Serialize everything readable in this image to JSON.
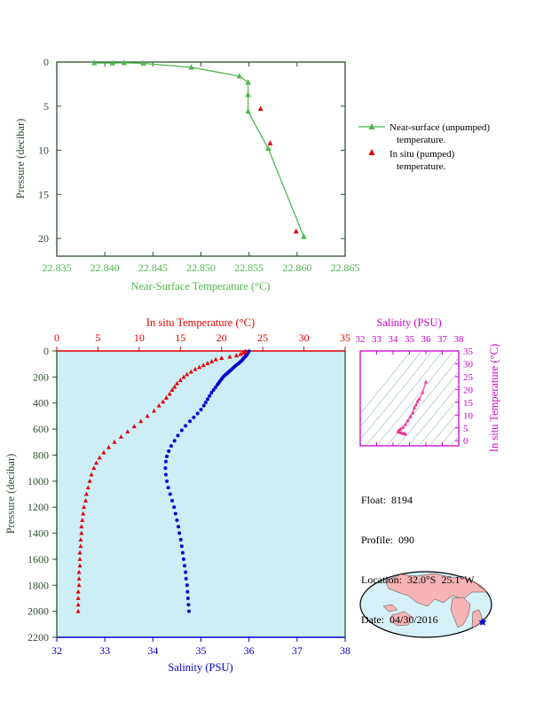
{
  "colors": {
    "surface_green": "#4cb84c",
    "axis_green": "#2e4e2e",
    "insitu_red": "#e00000",
    "salinity_blue": "#0000d0",
    "plot_bg": "#cdeef7",
    "salinity_purple": "#cc00cc",
    "map_land": "#f7b4b4"
  },
  "float_info": {
    "float": "Float:  8194",
    "profile": "Profile:  090",
    "location": "Location:  32.0°S  25.1°W",
    "date": "Date:  04/30/2016"
  },
  "tiny_footer": "",
  "chart_data": [
    {
      "id": "near_surface",
      "type": "line",
      "xlabel": "Near-Surface Temperature (°C)",
      "ylabel": "Pressure (decibar)",
      "xlim": [
        22.835,
        22.865
      ],
      "ylim": [
        22,
        0
      ],
      "xticks": [
        "22.835",
        "22.840",
        "22.845",
        "22.850",
        "22.855",
        "22.860",
        "22.865"
      ],
      "yticks": [
        "0",
        "5",
        "10",
        "15",
        "20"
      ],
      "series": [
        {
          "name": "Near-surface (unpumped) temperature.",
          "marker": "triangle",
          "points": [
            [
              22.8389,
              0.1
            ],
            [
              22.8408,
              0.12
            ],
            [
              22.842,
              0.08
            ],
            [
              22.844,
              0.15
            ],
            [
              22.849,
              0.6
            ],
            [
              22.854,
              1.6
            ],
            [
              22.8549,
              2.3
            ],
            [
              22.8549,
              3.7
            ],
            [
              22.8549,
              5.6
            ],
            [
              22.857,
              9.8
            ],
            [
              22.8607,
              19.8
            ]
          ]
        },
        {
          "name": "In situ (pumped) temperature.",
          "marker": "triangle",
          "points": [
            [
              22.8562,
              5.3
            ],
            [
              22.8572,
              9.2
            ],
            [
              22.8599,
              19.2
            ]
          ]
        }
      ],
      "legend": [
        {
          "line1": "Near-surface (unpumped)",
          "line2": "temperature."
        },
        {
          "line1": "In situ (pumped)",
          "line2": "temperature."
        }
      ],
      "legend_position": "right"
    },
    {
      "id": "profile",
      "type": "scatter",
      "title_top": "In situ Temperature (°C)",
      "xlabel": "Salinity (PSU)",
      "ylabel": "Pressure (decibar)",
      "temp_lim": [
        0,
        35
      ],
      "sal_lim": [
        32,
        38
      ],
      "ylim": [
        2200,
        0
      ],
      "temp_ticks": [
        "0",
        "5",
        "10",
        "15",
        "20",
        "25",
        "30",
        "35"
      ],
      "sal_ticks": [
        "32",
        "33",
        "34",
        "35",
        "36",
        "37",
        "38"
      ],
      "yticks": [
        "0",
        "200",
        "400",
        "600",
        "800",
        "1000",
        "1200",
        "1400",
        "1600",
        "1800",
        "2000",
        "2200"
      ],
      "temperature": [
        [
          22.9,
          2
        ],
        [
          22.8,
          8
        ],
        [
          22.6,
          15
        ],
        [
          22.3,
          25
        ],
        [
          21.8,
          35
        ],
        [
          21.0,
          45
        ],
        [
          20.0,
          55
        ],
        [
          19.3,
          65
        ],
        [
          18.8,
          80
        ],
        [
          18.3,
          95
        ],
        [
          17.8,
          110
        ],
        [
          17.3,
          125
        ],
        [
          16.8,
          140
        ],
        [
          16.3,
          160
        ],
        [
          15.8,
          180
        ],
        [
          15.4,
          200
        ],
        [
          15.0,
          225
        ],
        [
          14.6,
          250
        ],
        [
          14.3,
          275
        ],
        [
          14.0,
          300
        ],
        [
          13.7,
          330
        ],
        [
          13.3,
          360
        ],
        [
          12.9,
          390
        ],
        [
          12.4,
          420
        ],
        [
          11.8,
          460
        ],
        [
          11.0,
          500
        ],
        [
          10.2,
          540
        ],
        [
          9.4,
          580
        ],
        [
          8.6,
          620
        ],
        [
          7.8,
          660
        ],
        [
          7.0,
          700
        ],
        [
          6.3,
          740
        ],
        [
          5.7,
          780
        ],
        [
          5.2,
          820
        ],
        [
          4.8,
          860
        ],
        [
          4.5,
          900
        ],
        [
          4.2,
          950
        ],
        [
          4.0,
          1000
        ],
        [
          3.8,
          1050
        ],
        [
          3.6,
          1100
        ],
        [
          3.5,
          1150
        ],
        [
          3.3,
          1200
        ],
        [
          3.2,
          1250
        ],
        [
          3.1,
          1300
        ],
        [
          3.0,
          1350
        ],
        [
          3.0,
          1400
        ],
        [
          2.9,
          1450
        ],
        [
          2.9,
          1500
        ],
        [
          2.8,
          1550
        ],
        [
          2.8,
          1600
        ],
        [
          2.8,
          1650
        ],
        [
          2.7,
          1700
        ],
        [
          2.7,
          1750
        ],
        [
          2.7,
          1800
        ],
        [
          2.6,
          1850
        ],
        [
          2.6,
          1900
        ],
        [
          2.6,
          1950
        ],
        [
          2.6,
          2000
        ]
      ],
      "salinity": [
        [
          36.0,
          2
        ],
        [
          35.98,
          10
        ],
        [
          35.97,
          20
        ],
        [
          35.95,
          30
        ],
        [
          35.93,
          40
        ],
        [
          35.9,
          50
        ],
        [
          35.88,
          60
        ],
        [
          35.86,
          70
        ],
        [
          35.83,
          80
        ],
        [
          35.8,
          90
        ],
        [
          35.77,
          100
        ],
        [
          35.73,
          110
        ],
        [
          35.7,
          120
        ],
        [
          35.67,
          130
        ],
        [
          35.64,
          140
        ],
        [
          35.61,
          150
        ],
        [
          35.58,
          160
        ],
        [
          35.55,
          170
        ],
        [
          35.52,
          180
        ],
        [
          35.49,
          190
        ],
        [
          35.46,
          200
        ],
        [
          35.43,
          215
        ],
        [
          35.4,
          230
        ],
        [
          35.37,
          245
        ],
        [
          35.34,
          260
        ],
        [
          35.3,
          280
        ],
        [
          35.26,
          300
        ],
        [
          35.22,
          320
        ],
        [
          35.18,
          345
        ],
        [
          35.14,
          370
        ],
        [
          35.1,
          395
        ],
        [
          35.06,
          420
        ],
        [
          35.0,
          450
        ],
        [
          34.93,
          480
        ],
        [
          34.85,
          510
        ],
        [
          34.77,
          540
        ],
        [
          34.68,
          575
        ],
        [
          34.6,
          610
        ],
        [
          34.52,
          650
        ],
        [
          34.45,
          690
        ],
        [
          34.38,
          730
        ],
        [
          34.33,
          770
        ],
        [
          34.29,
          810
        ],
        [
          34.27,
          850
        ],
        [
          34.26,
          900
        ],
        [
          34.27,
          950
        ],
        [
          34.29,
          1000
        ],
        [
          34.32,
          1050
        ],
        [
          34.36,
          1100
        ],
        [
          34.4,
          1150
        ],
        [
          34.44,
          1200
        ],
        [
          34.47,
          1250
        ],
        [
          34.5,
          1300
        ],
        [
          34.53,
          1350
        ],
        [
          34.55,
          1400
        ],
        [
          34.58,
          1450
        ],
        [
          34.6,
          1500
        ],
        [
          34.62,
          1550
        ],
        [
          34.64,
          1600
        ],
        [
          34.66,
          1650
        ],
        [
          34.68,
          1700
        ],
        [
          34.69,
          1750
        ],
        [
          34.71,
          1800
        ],
        [
          34.72,
          1850
        ],
        [
          34.73,
          1900
        ],
        [
          34.74,
          1950
        ],
        [
          34.75,
          2000
        ]
      ]
    },
    {
      "id": "ts_diagram",
      "type": "scatter",
      "title": "Salinity (PSU)",
      "ylabel": "In situ Temperature (°C)",
      "xlim": [
        32,
        38
      ],
      "ylim": [
        -2,
        35
      ],
      "xticks": [
        "32",
        "33",
        "34",
        "35",
        "36",
        "37",
        "38"
      ],
      "yticks": [
        "0",
        "5",
        "10",
        "15",
        "20",
        "25",
        "30",
        "35"
      ],
      "points": [
        [
          36.0,
          22.9
        ],
        [
          35.8,
          18.8
        ],
        [
          35.6,
          16.3
        ],
        [
          35.5,
          15.4
        ],
        [
          35.4,
          14.0
        ],
        [
          35.3,
          12.9
        ],
        [
          35.2,
          11.0
        ],
        [
          35.05,
          9.4
        ],
        [
          34.9,
          7.8
        ],
        [
          34.75,
          6.3
        ],
        [
          34.6,
          5.2
        ],
        [
          34.45,
          4.5
        ],
        [
          34.35,
          4.0
        ],
        [
          34.3,
          3.6
        ],
        [
          34.4,
          3.3
        ],
        [
          34.5,
          3.1
        ],
        [
          34.6,
          2.9
        ],
        [
          34.7,
          2.7
        ],
        [
          34.75,
          2.6
        ]
      ]
    }
  ]
}
